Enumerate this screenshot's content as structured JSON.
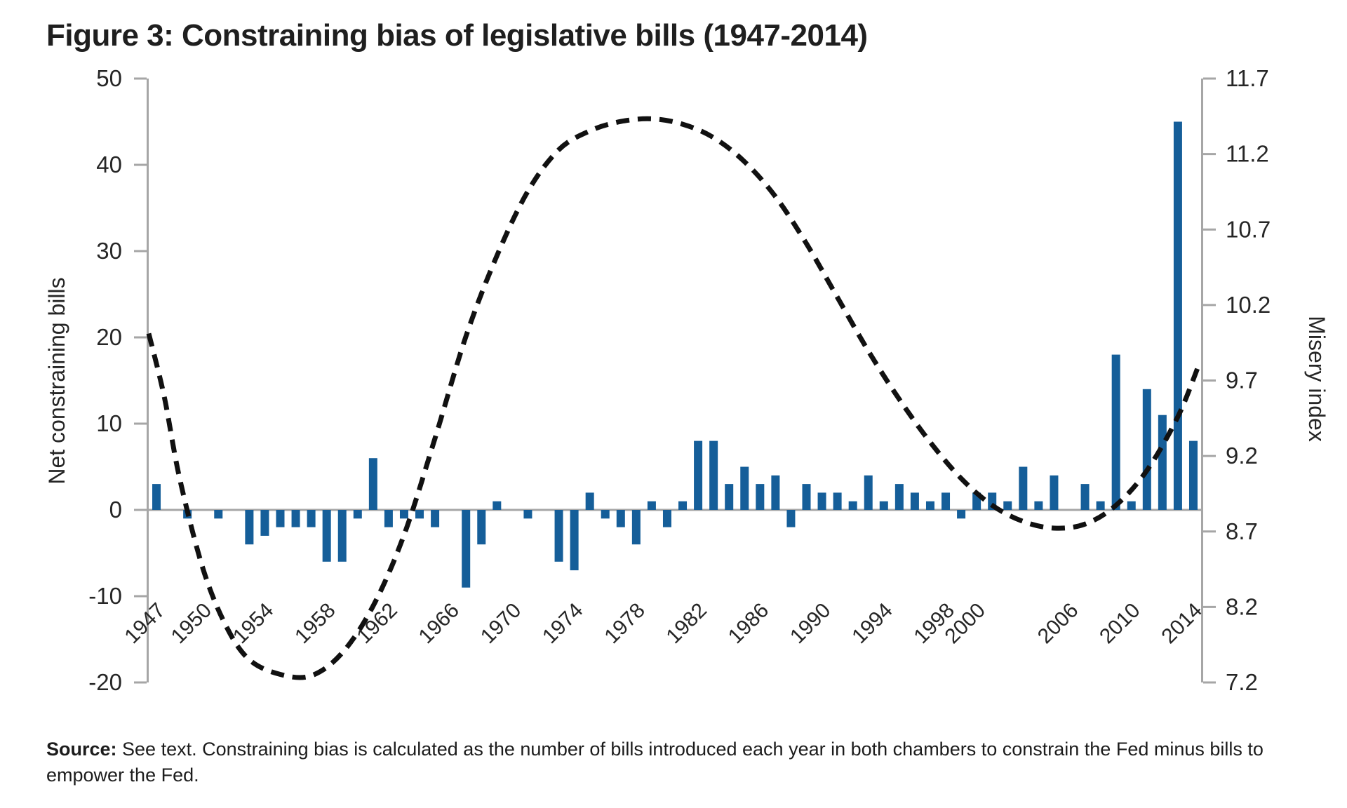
{
  "figure": {
    "title": "Figure 3: Constraining bias of legislative bills (1947-2014)",
    "source_label": "Source:",
    "source_text": " See text. Constraining bias is calculated as the number of bills introduced each year in both chambers to constrain the Fed minus bills to empower the Fed."
  },
  "chart_data": {
    "type": "bar",
    "title": "Figure 3: Constraining bias of legislative bills (1947-2014)",
    "grid": "off",
    "legend": "none",
    "x_axis": {
      "range": [
        1947,
        2014
      ],
      "tick_labels": [
        "1947",
        "1950",
        "1954",
        "1958",
        "1962",
        "1966",
        "1970",
        "1974",
        "1978",
        "1982",
        "1986",
        "1990",
        "1994",
        "1998",
        "2000",
        "2006",
        "2010",
        "2014"
      ]
    },
    "left_axis": {
      "label": "Net constraining bills",
      "ticks": [
        50,
        40,
        30,
        20,
        10,
        0,
        -10,
        -20
      ],
      "range": [
        -20,
        50
      ]
    },
    "right_axis": {
      "label": "Misery index",
      "tick_labels": [
        "11.7",
        "11.2",
        "10.7",
        "10.2",
        "9.7",
        "9.2",
        "8.7",
        "8.2",
        "7.2"
      ],
      "range": [
        7.2,
        11.7
      ]
    },
    "bars": {
      "axis": "left",
      "color": "#155E99",
      "start_year": 1947,
      "values": [
        3,
        0,
        -1,
        0,
        -1,
        0,
        -4,
        -3,
        -2,
        -2,
        -2,
        -6,
        -6,
        -1,
        6,
        -2,
        -1,
        -1,
        -2,
        0,
        -9,
        -4,
        1,
        0,
        -1,
        0,
        -6,
        -7,
        2,
        -1,
        -2,
        -4,
        1,
        -2,
        1,
        8,
        8,
        3,
        5,
        3,
        4,
        -2,
        3,
        2,
        2,
        1,
        4,
        1,
        3,
        2,
        1,
        2,
        -1,
        2,
        2,
        1,
        5,
        1,
        4,
        0,
        3,
        1,
        18,
        1,
        14,
        11,
        45,
        8
      ]
    },
    "line": {
      "axis": "right",
      "style": "dashed",
      "color": "#111111",
      "points": [
        [
          1946.5,
          9.8
        ],
        [
          1947.5,
          9.33
        ],
        [
          1948.5,
          8.72
        ],
        [
          1950,
          8.05
        ],
        [
          1951.5,
          7.62
        ],
        [
          1953,
          7.37
        ],
        [
          1955,
          7.26
        ],
        [
          1957,
          7.25
        ],
        [
          1959,
          7.42
        ],
        [
          1961,
          7.77
        ],
        [
          1963,
          8.3
        ],
        [
          1965,
          9.02
        ],
        [
          1967,
          9.78
        ],
        [
          1969,
          10.38
        ],
        [
          1971,
          10.86
        ],
        [
          1973,
          11.17
        ],
        [
          1975,
          11.31
        ],
        [
          1977,
          11.38
        ],
        [
          1979,
          11.4
        ],
        [
          1981,
          11.36
        ],
        [
          1983,
          11.26
        ],
        [
          1985,
          11.08
        ],
        [
          1987,
          10.82
        ],
        [
          1989,
          10.47
        ],
        [
          1991,
          10.07
        ],
        [
          1993,
          9.67
        ],
        [
          1995,
          9.31
        ],
        [
          1997,
          8.99
        ],
        [
          1999,
          8.72
        ],
        [
          2001,
          8.52
        ],
        [
          2003,
          8.4
        ],
        [
          2005,
          8.35
        ],
        [
          2007,
          8.38
        ],
        [
          2009,
          8.52
        ],
        [
          2011,
          8.78
        ],
        [
          2013,
          9.18
        ],
        [
          2014.3,
          9.55
        ]
      ]
    },
    "axis_color": "#A6A6A6",
    "text_color": "#262626"
  }
}
